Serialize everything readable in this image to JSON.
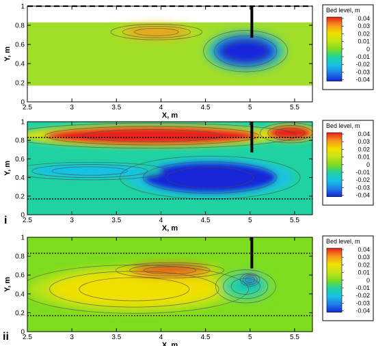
{
  "chart_data": [
    {
      "type": "heatmap",
      "panel_label": "",
      "xlabel": "X, m",
      "ylabel": "Y, m",
      "xlim": [
        2.5,
        5.7
      ],
      "ylim": [
        0,
        1
      ],
      "xticks": [
        "2.5",
        "3",
        "3.5",
        "4",
        "4.5",
        "5",
        "5.5"
      ],
      "yticks": [
        "0",
        "0.2",
        "0.4",
        "0.6",
        "0.8",
        "1"
      ],
      "data_extent_y": [
        0.17,
        0.83
      ],
      "structure_x": 5.02,
      "structure_y": [
        0.67,
        1.0
      ],
      "dashed_lines_y": [
        1.0
      ],
      "background_color": "#a0de28",
      "features": [
        {
          "kind": "scour",
          "x": 4.95,
          "y": 0.53,
          "rx": 0.35,
          "ry": 0.16,
          "value": -0.04
        },
        {
          "kind": "deposit",
          "x": 3.95,
          "y": 0.73,
          "rx": 0.38,
          "ry": 0.06,
          "value": 0.025
        }
      ],
      "legend": {
        "title": "Bed level, m",
        "labels": [
          "0.04",
          "0.03",
          "0.02",
          "0.01",
          "0",
          "-0.01",
          "-0.02",
          "-0.03",
          "-0.04"
        ],
        "colors": [
          "#e8201a",
          "#f7941d",
          "#f0e000",
          "#c4e417",
          "#7ddc1f",
          "#1fd2a2",
          "#18c1e6",
          "#1f7ee8",
          "#1327d8"
        ]
      }
    },
    {
      "type": "heatmap",
      "panel_label": "i",
      "xlabel": "X, m",
      "ylabel": "Y, m",
      "xlim": [
        2.5,
        5.7
      ],
      "ylim": [
        0,
        1
      ],
      "xticks": [
        "2.5",
        "3",
        "3.5",
        "4",
        "4.5",
        "5",
        "5.5"
      ],
      "yticks": [
        "0",
        "0.2",
        "0.4",
        "0.6",
        "0.8",
        "1"
      ],
      "data_extent_y": [
        0,
        1
      ],
      "structure_x": 5.02,
      "structure_y": [
        0.67,
        1.0
      ],
      "dotted_lines_y": [
        0.83,
        0.17
      ],
      "background_color": "#1fd2a2",
      "features": [
        {
          "kind": "deposit",
          "x": 3.9,
          "y": 0.85,
          "rx": 1.2,
          "ry": 0.1,
          "value": 0.04
        },
        {
          "kind": "deposit",
          "x": 5.45,
          "y": 0.88,
          "rx": 0.25,
          "ry": 0.08,
          "value": 0.04
        },
        {
          "kind": "scour",
          "x": 4.55,
          "y": 0.4,
          "rx": 0.75,
          "ry": 0.17,
          "value": -0.04
        },
        {
          "kind": "scour",
          "x": 3.2,
          "y": 0.47,
          "rx": 0.65,
          "ry": 0.07,
          "value": -0.02
        }
      ],
      "legend": {
        "title": "Bed level, m",
        "labels": [
          "0.04",
          "0.03",
          "0.02",
          "0.01",
          "0",
          "-0.01",
          "-0.02",
          "-0.03",
          "-0.04"
        ],
        "colors": [
          "#e8201a",
          "#f7941d",
          "#f0e000",
          "#c4e417",
          "#7ddc1f",
          "#1fd2a2",
          "#18c1e6",
          "#1f7ee8",
          "#1327d8"
        ]
      }
    },
    {
      "type": "heatmap",
      "panel_label": "ii",
      "xlabel": "X, m",
      "ylabel": "Y, m",
      "xlim": [
        2.5,
        5.7
      ],
      "ylim": [
        0,
        1
      ],
      "xticks": [
        "2.5",
        "3",
        "3.5",
        "4",
        "4.5",
        "5",
        "5.5"
      ],
      "yticks": [
        "0",
        "0.2",
        "0.4",
        "0.6",
        "0.8",
        "1"
      ],
      "data_extent_y": [
        0,
        1
      ],
      "structure_x": 5.02,
      "structure_y": [
        0.67,
        1.0
      ],
      "dotted_lines_y": [
        0.83,
        0.17
      ],
      "background_color": "#7ddc1f",
      "features": [
        {
          "kind": "deposit",
          "x": 3.7,
          "y": 0.45,
          "rx": 0.95,
          "ry": 0.19,
          "value": 0.02
        },
        {
          "kind": "deposit",
          "x": 4.1,
          "y": 0.65,
          "rx": 0.45,
          "ry": 0.06,
          "value": 0.04
        },
        {
          "kind": "scour",
          "x": 4.95,
          "y": 0.48,
          "rx": 0.25,
          "ry": 0.13,
          "value": -0.01
        },
        {
          "kind": "scour",
          "x": 5.0,
          "y": 0.55,
          "rx": 0.08,
          "ry": 0.05,
          "value": -0.04
        }
      ],
      "legend": {
        "title": "Bed level, m",
        "labels": [
          "0.04",
          "0.03",
          "0.02",
          "0.01",
          "0",
          "-0.01",
          "-0.02",
          "-0.03",
          "-0.04"
        ],
        "colors": [
          "#e8201a",
          "#f7941d",
          "#f0e000",
          "#c4e417",
          "#7ddc1f",
          "#1fd2a2",
          "#18c1e6",
          "#1f7ee8",
          "#1327d8"
        ]
      }
    }
  ]
}
